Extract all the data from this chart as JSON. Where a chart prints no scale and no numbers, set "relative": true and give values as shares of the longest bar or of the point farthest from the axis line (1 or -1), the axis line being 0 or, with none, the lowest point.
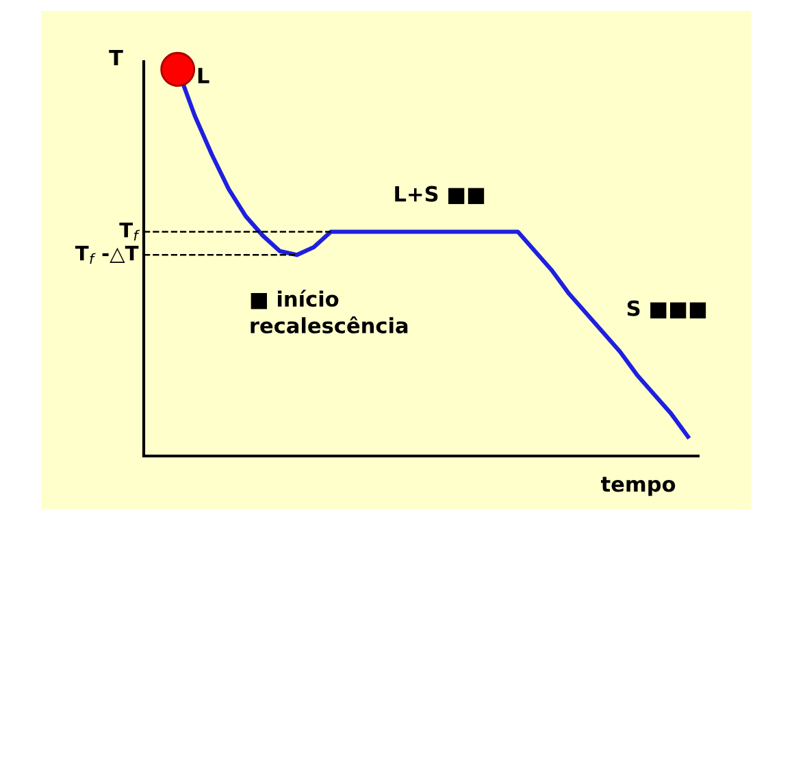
{
  "chart_data": {
    "type": "line",
    "relative": true,
    "xlabel": "tempo",
    "ylabel": "T",
    "categories": [
      null,
      null,
      null,
      null,
      null,
      null,
      null,
      null,
      null,
      null,
      null,
      null,
      null,
      null,
      null,
      null,
      null,
      null,
      null,
      null,
      null,
      null,
      null,
      null,
      null,
      null,
      null,
      null,
      null,
      null,
      null
    ],
    "series": [
      {
        "color": "#1f1fe0",
        "values": [
          1.0,
          0.88,
          0.78,
          0.69,
          0.62,
          0.57,
          0.53,
          0.52,
          0.54,
          0.58,
          0.58,
          0.58,
          0.58,
          0.58,
          0.58,
          0.58,
          0.58,
          0.58,
          0.58,
          0.58,
          0.58,
          0.53,
          0.48,
          0.42,
          0.37,
          0.32,
          0.27,
          0.21,
          0.16,
          0.11,
          0.05
        ]
      }
    ],
    "ref_lines": [
      {
        "axis": "y",
        "value": 0.58,
        "label": "T$_{f}$",
        "line_style": "dashed",
        "color": "#000000"
      },
      {
        "axis": "y",
        "value": 0.52,
        "label": "T$_{f}$ -△T",
        "line_style": "dashed",
        "color": "#000000"
      }
    ],
    "annotations": [
      "L",
      "L+S ■■",
      "S ■■■",
      "■ início\nrecalescência"
    ],
    "marker": "none",
    "line_style": "solid",
    "legend": false
  }
}
